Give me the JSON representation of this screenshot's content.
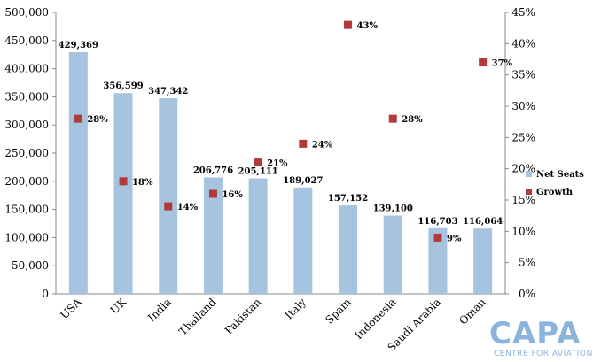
{
  "chart_data": {
    "type": "bar",
    "categories": [
      "USA",
      "UK",
      "India",
      "Thailand",
      "Pakistan",
      "Italy",
      "Spain",
      "Indonesia",
      "Saudi Arabia",
      "Oman"
    ],
    "series": [
      {
        "name": "Net Seats",
        "axis": "left",
        "type": "bar",
        "values": [
          429369,
          356599,
          347342,
          206776,
          205111,
          189027,
          157152,
          139100,
          116703,
          116064
        ],
        "labels": [
          "429,369",
          "356,599",
          "347,342",
          "206,776",
          "205,111",
          "189,027",
          "157,152",
          "139,100",
          "116,703",
          "116,064"
        ],
        "color": "#a6c3e0"
      },
      {
        "name": "Growth",
        "axis": "right",
        "type": "scatter",
        "values": [
          28,
          18,
          14,
          16,
          21,
          24,
          43,
          28,
          9,
          37
        ],
        "labels": [
          "28%",
          "18%",
          "14%",
          "16%",
          "21%",
          "24%",
          "43%",
          "28%",
          "9%",
          "37%"
        ],
        "color": "#b23a3a"
      }
    ],
    "ylim": [
      0,
      500000
    ],
    "y_ticks": [
      "0",
      "50,000",
      "100,000",
      "150,000",
      "200,000",
      "250,000",
      "300,000",
      "350,000",
      "400,000",
      "450,000",
      "500,000"
    ],
    "y2lim": [
      0,
      45
    ],
    "y2_ticks": [
      "0%",
      "5%",
      "10%",
      "15%",
      "20%",
      "25%",
      "30%",
      "35%",
      "40%",
      "45%"
    ],
    "grid": false,
    "legend_position": "right"
  },
  "logo": {
    "main": "CAPA",
    "sub": "CENTRE FOR AVIATION"
  }
}
